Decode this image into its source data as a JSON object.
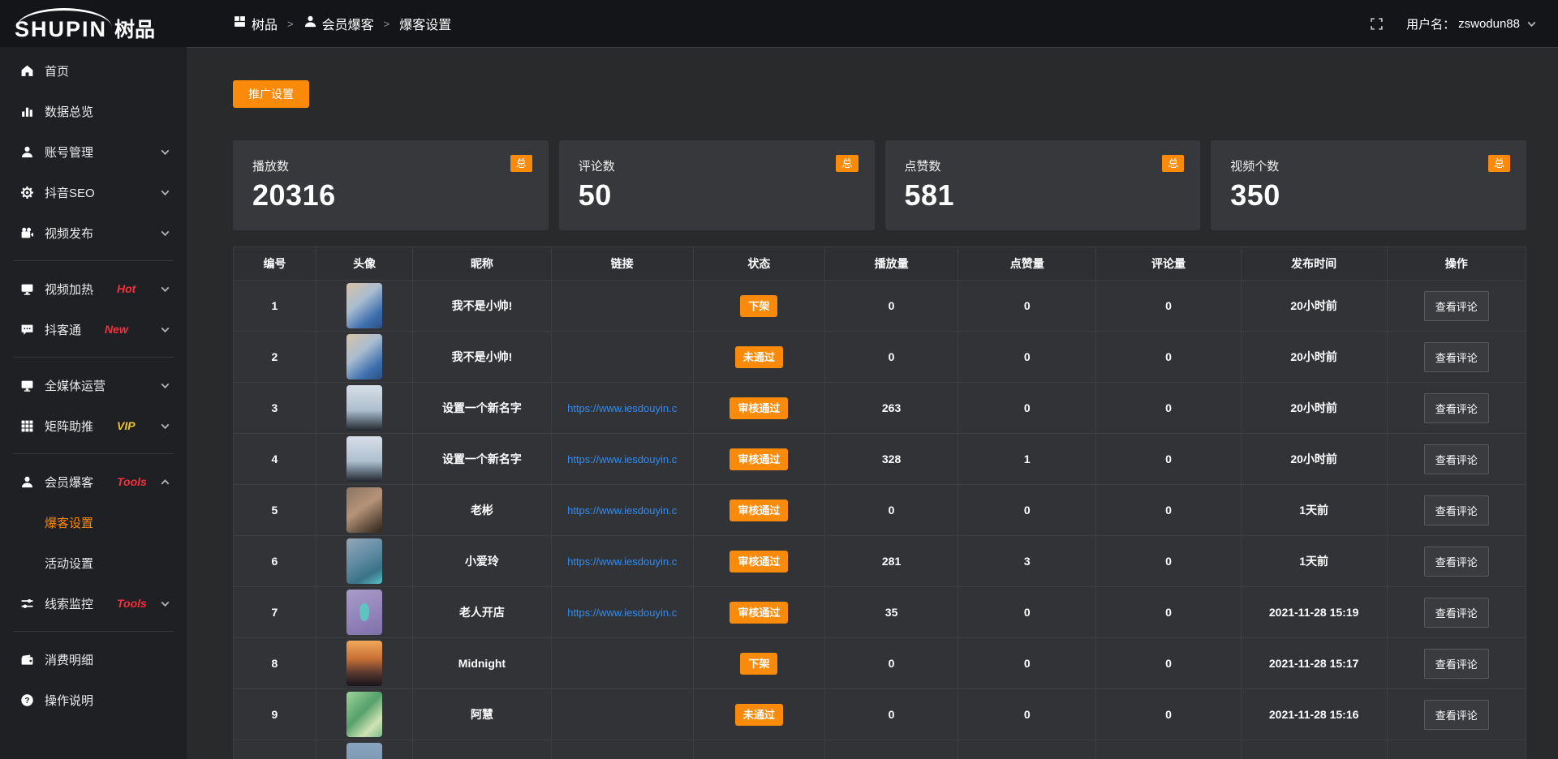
{
  "colors": {
    "accent": "#fa8a0a",
    "link": "#2f8df4",
    "red": "#f5303d",
    "gold": "#f0c330"
  },
  "header": {
    "logo_text": "SHUPIN",
    "logo_suffix": "树品",
    "breadcrumb": [
      {
        "icon": "dashboard-icon",
        "label": "树品"
      },
      {
        "icon": "user-icon",
        "label": "会员爆客"
      },
      {
        "label": "爆客设置"
      }
    ],
    "breadcrumb_separator": ">",
    "username_label": "用户名：",
    "username": "zswodun88"
  },
  "sidebar": {
    "items": [
      {
        "label": "首页",
        "icon": "home-icon"
      },
      {
        "label": "数据总览",
        "icon": "bar-chart-icon"
      },
      {
        "label": "账号管理",
        "icon": "user-icon",
        "chevron": "down"
      },
      {
        "label": "抖音SEO",
        "icon": "gear-icon",
        "chevron": "down"
      },
      {
        "label": "视频发布",
        "icon": "video-camera-icon",
        "chevron": "down",
        "divider_after": true
      },
      {
        "label": "视频加热",
        "icon": "monitor-icon",
        "badge": "Hot",
        "badge_color": "#f5303d",
        "chevron": "down"
      },
      {
        "label": "抖客通",
        "icon": "chat-icon",
        "badge": "New",
        "badge_color": "#f5303d",
        "chevron": "down",
        "divider_after": true
      },
      {
        "label": "全媒体运营",
        "icon": "monitor-icon",
        "chevron": "down"
      },
      {
        "label": "矩阵助推",
        "icon": "grid-icon",
        "badge": "VIP",
        "badge_color": "#f0c330",
        "chevron": "down",
        "divider_after": true
      },
      {
        "label": "会员爆客",
        "icon": "user-icon",
        "badge": "Tools",
        "badge_color": "#f5303d",
        "chevron": "up"
      },
      {
        "label": "爆客设置",
        "sub": true,
        "active": true
      },
      {
        "label": "活动设置",
        "sub": true
      },
      {
        "label": "线索监控",
        "icon": "sliders-icon",
        "badge": "Tools",
        "badge_color": "#f5303d",
        "chevron": "down",
        "divider_after": true
      },
      {
        "label": "消费明细",
        "icon": "wallet-icon"
      },
      {
        "label": "操作说明",
        "icon": "help-icon"
      }
    ]
  },
  "toolbar": {
    "promo_button": "推广设置"
  },
  "stats": [
    {
      "label": "播放数",
      "value": "20316",
      "badge": "总"
    },
    {
      "label": "评论数",
      "value": "50",
      "badge": "总"
    },
    {
      "label": "点赞数",
      "value": "581",
      "badge": "总"
    },
    {
      "label": "视频个数",
      "value": "350",
      "badge": "总"
    }
  ],
  "table": {
    "columns": [
      "编号",
      "头像",
      "昵称",
      "链接",
      "状态",
      "播放量",
      "点赞量",
      "评论量",
      "发布时间",
      "操作"
    ],
    "action_label": "查看评论",
    "rows": [
      {
        "id": "1",
        "avatar": "boy-blue",
        "nickname": "我不是小帅!",
        "link": "",
        "status": "下架",
        "plays": "0",
        "likes": "0",
        "comments": "0",
        "time": "20小时前"
      },
      {
        "id": "2",
        "avatar": "boy-blue",
        "nickname": "我不是小帅!",
        "link": "",
        "status": "未通过",
        "plays": "0",
        "likes": "0",
        "comments": "0",
        "time": "20小时前"
      },
      {
        "id": "3",
        "avatar": "sky",
        "nickname": "设置一个新名字",
        "link": "https://www.iesdouyin.c",
        "status": "审核通过",
        "plays": "263",
        "likes": "0",
        "comments": "0",
        "time": "20小时前"
      },
      {
        "id": "4",
        "avatar": "sky",
        "nickname": "设置一个新名字",
        "link": "https://www.iesdouyin.c",
        "status": "审核通过",
        "plays": "328",
        "likes": "1",
        "comments": "0",
        "time": "20小时前"
      },
      {
        "id": "5",
        "avatar": "man",
        "nickname": "老彬",
        "link": "https://www.iesdouyin.c",
        "status": "审核通过",
        "plays": "0",
        "likes": "0",
        "comments": "0",
        "time": "1天前"
      },
      {
        "id": "6",
        "avatar": "teal-person",
        "nickname": "小爱玲",
        "link": "https://www.iesdouyin.c",
        "status": "审核通过",
        "plays": "281",
        "likes": "3",
        "comments": "0",
        "time": "1天前"
      },
      {
        "id": "7",
        "avatar": "purple-cartoon",
        "nickname": "老人开店",
        "link": "https://www.iesdouyin.c",
        "status": "审核通过",
        "plays": "35",
        "likes": "0",
        "comments": "0",
        "time": "2021-11-28 15:19"
      },
      {
        "id": "8",
        "avatar": "sunset",
        "nickname": "Midnight",
        "link": "",
        "status": "下架",
        "plays": "0",
        "likes": "0",
        "comments": "0",
        "time": "2021-11-28 15:17"
      },
      {
        "id": "9",
        "avatar": "green-paint",
        "nickname": "阿慧",
        "link": "",
        "status": "未通过",
        "plays": "0",
        "likes": "0",
        "comments": "0",
        "time": "2021-11-28 15:16"
      },
      {
        "id": "",
        "avatar": "blue-gray",
        "nickname": "",
        "link": "",
        "status": "",
        "plays": "",
        "likes": "",
        "comments": "",
        "time": ""
      }
    ]
  }
}
